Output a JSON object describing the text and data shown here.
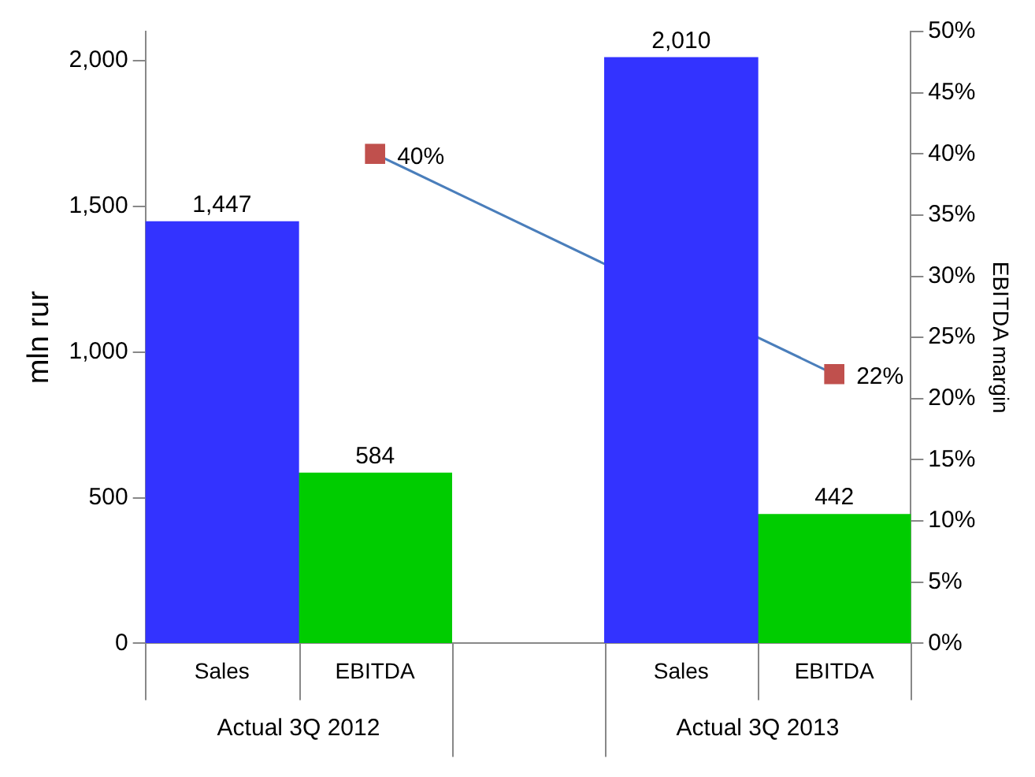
{
  "chart_data": {
    "type": "bar",
    "ylabel": "mln rur",
    "y2label": "EBITDA margin",
    "categories": [
      "Sales",
      "EBITDA",
      null,
      "Sales",
      "EBITDA"
    ],
    "series": [
      {
        "color": "#3333ff",
        "values": [
          1447,
          null,
          null,
          2010,
          null
        ],
        "value_labels": [
          "1,447",
          null,
          null,
          "2,010",
          null
        ]
      },
      {
        "color": "#00cc00",
        "values": [
          null,
          584,
          null,
          null,
          442
        ],
        "value_labels": [
          null,
          "584",
          null,
          null,
          "442"
        ]
      },
      {
        "type": "line",
        "axis": "y2",
        "color": "#4a7ebb",
        "colors": [
          null,
          "#c0504d",
          null,
          null,
          "#c0504d"
        ],
        "marker": "square",
        "values": [
          null,
          40,
          null,
          null,
          22
        ],
        "value_labels": [
          null,
          "40%",
          null,
          null,
          "22%"
        ]
      }
    ],
    "ylim": [
      0,
      2100
    ],
    "yticks": [
      0,
      {
        "value": 500,
        "label": "500"
      },
      {
        "value": 1000,
        "label": "1,000"
      },
      {
        "value": 1500,
        "label": "1,500"
      },
      {
        "value": 2000,
        "label": "2,000"
      }
    ],
    "y2lim": [
      0,
      50
    ],
    "y2ticks": [
      {
        "value": 0,
        "label": "0%"
      },
      {
        "value": 5,
        "label": "5%"
      },
      {
        "value": 10,
        "label": "10%"
      },
      {
        "value": 15,
        "label": "15%"
      },
      {
        "value": 20,
        "label": "20%"
      },
      {
        "value": 25,
        "label": "25%"
      },
      {
        "value": 30,
        "label": "30%"
      },
      {
        "value": 35,
        "label": "35%"
      },
      {
        "value": 40,
        "label": "40%"
      },
      {
        "value": 45,
        "label": "45%"
      },
      {
        "value": 50,
        "label": "50%"
      }
    ],
    "annotations": [
      "Actual 3Q 2012",
      "Actual 3Q 2013"
    ],
    "grid": false,
    "legend": false
  }
}
